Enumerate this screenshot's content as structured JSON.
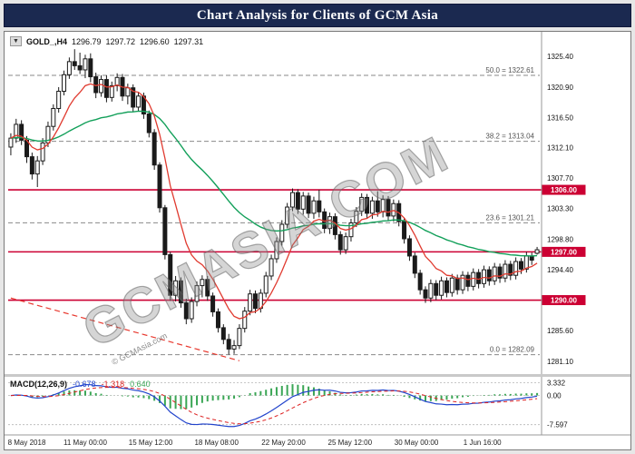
{
  "header": {
    "title": "Chart Analysis for Clients of GCM Asia",
    "bg_color": "#1b2950"
  },
  "symbol_bar": {
    "dropdown_icon": "▼",
    "symbol": "GOLD_,H4",
    "open": "1296.79",
    "high": "1297.72",
    "low": "1296.60",
    "close": "1297.31"
  },
  "watermark": {
    "main": "GCMASIA.COM",
    "small": "© GCMAsia.com"
  },
  "chart_data": {
    "type": "candlestick",
    "title": "GOLD_ H4 with MACD(12,26,9)",
    "price_range": {
      "top": 1328.4,
      "bottom": 1279.4
    },
    "price_axis_ticks": [
      "1325.40",
      "1320.90",
      "1316.50",
      "1312.10",
      "1307.70",
      "1303.30",
      "1298.80",
      "1294.40",
      "1290.00",
      "1285.60",
      "1281.10"
    ],
    "colors": {
      "sr": "#cc0033",
      "candle_up": "#ffffff",
      "candle_down": "#1a1a1a",
      "wick": "#1a1a1a"
    },
    "support_resistance": [
      {
        "price": 1306.0,
        "label": "1306.00"
      },
      {
        "price": 1297.0,
        "label": "1297.00"
      },
      {
        "price": 1290.0,
        "label": "1290.00"
      }
    ],
    "fibonacci": [
      {
        "label": "50.0 = 1322.61",
        "price": 1322.61
      },
      {
        "label": "38.2 = 1313.04",
        "price": 1313.04
      },
      {
        "label": "23.6 = 1301.21",
        "price": 1301.21
      },
      {
        "label": "0.0 = 1282.09",
        "price": 1282.09
      }
    ],
    "overlays": {
      "ma_fast": {
        "type": "ema",
        "period": 9,
        "color": "#e03a2f"
      },
      "ma_slow": {
        "type": "ema",
        "period": 45,
        "color": "#13a05a"
      },
      "trendline": {
        "from": [
          0,
          1290.3
        ],
        "to": [
          43,
          1281.2
        ],
        "color": "#e8392f"
      }
    },
    "candles": [
      [
        1312.2,
        1314.2,
        1311.0,
        1313.5
      ],
      [
        1313.5,
        1316.3,
        1312.8,
        1315.5
      ],
      [
        1315.5,
        1316.1,
        1312.5,
        1313.2
      ],
      [
        1313.2,
        1313.8,
        1309.9,
        1310.8
      ],
      [
        1310.8,
        1311.4,
        1307.5,
        1308.3
      ],
      [
        1308.3,
        1310.9,
        1306.4,
        1310.2
      ],
      [
        1310.2,
        1313.5,
        1309.6,
        1312.8
      ],
      [
        1312.8,
        1315.9,
        1312.2,
        1315.2
      ],
      [
        1315.2,
        1318.4,
        1314.6,
        1317.8
      ],
      [
        1317.8,
        1320.9,
        1317.2,
        1320.3
      ],
      [
        1320.3,
        1323.3,
        1319.7,
        1322.7
      ],
      [
        1322.7,
        1325.2,
        1322.1,
        1324.6
      ],
      [
        1324.6,
        1326.4,
        1323.4,
        1324.0
      ],
      [
        1324.0,
        1325.9,
        1322.8,
        1323.4
      ],
      [
        1323.4,
        1325.6,
        1322.2,
        1325.0
      ],
      [
        1325.0,
        1325.8,
        1321.6,
        1322.4
      ],
      [
        1322.4,
        1323.0,
        1319.3,
        1320.1
      ],
      [
        1320.1,
        1322.6,
        1319.5,
        1322.0
      ],
      [
        1322.0,
        1322.6,
        1318.7,
        1319.4
      ],
      [
        1319.4,
        1321.7,
        1318.8,
        1321.1
      ],
      [
        1321.1,
        1322.9,
        1320.3,
        1322.3
      ],
      [
        1322.3,
        1322.8,
        1318.9,
        1319.6
      ],
      [
        1319.6,
        1321.4,
        1318.4,
        1320.8
      ],
      [
        1320.8,
        1321.3,
        1317.3,
        1318.0
      ],
      [
        1318.0,
        1320.2,
        1317.4,
        1319.6
      ],
      [
        1319.6,
        1320.1,
        1316.3,
        1317.0
      ],
      [
        1317.0,
        1317.5,
        1313.6,
        1314.3
      ],
      [
        1314.3,
        1314.8,
        1308.9,
        1309.6
      ],
      [
        1309.6,
        1310.0,
        1302.7,
        1303.4
      ],
      [
        1303.4,
        1303.8,
        1295.9,
        1296.6
      ],
      [
        1296.6,
        1297.0,
        1289.9,
        1290.7
      ],
      [
        1290.7,
        1293.5,
        1289.8,
        1292.8
      ],
      [
        1292.8,
        1293.3,
        1288.9,
        1289.6
      ],
      [
        1289.6,
        1290.2,
        1286.5,
        1287.3
      ],
      [
        1287.3,
        1290.4,
        1286.7,
        1289.8
      ],
      [
        1289.8,
        1292.7,
        1289.1,
        1292.1
      ],
      [
        1292.1,
        1293.6,
        1290.4,
        1293.0
      ],
      [
        1293.0,
        1293.5,
        1289.9,
        1290.6
      ],
      [
        1290.6,
        1291.1,
        1287.6,
        1288.3
      ],
      [
        1288.3,
        1288.8,
        1285.3,
        1286.0
      ],
      [
        1286.0,
        1286.5,
        1283.6,
        1284.3
      ],
      [
        1284.3,
        1285.1,
        1282.1,
        1282.9
      ],
      [
        1282.9,
        1284.2,
        1282.2,
        1283.4
      ],
      [
        1283.4,
        1286.5,
        1282.9,
        1285.9
      ],
      [
        1285.9,
        1289.0,
        1285.3,
        1288.4
      ],
      [
        1288.4,
        1291.5,
        1287.8,
        1290.9
      ],
      [
        1290.9,
        1291.4,
        1288.1,
        1288.8
      ],
      [
        1288.8,
        1291.6,
        1288.2,
        1291.0
      ],
      [
        1291.0,
        1294.1,
        1290.4,
        1293.5
      ],
      [
        1293.5,
        1296.6,
        1292.9,
        1296.0
      ],
      [
        1296.0,
        1299.1,
        1295.4,
        1298.5
      ],
      [
        1298.5,
        1301.6,
        1297.9,
        1301.0
      ],
      [
        1301.0,
        1304.1,
        1300.4,
        1303.5
      ],
      [
        1303.5,
        1306.2,
        1302.9,
        1305.6
      ],
      [
        1305.6,
        1306.1,
        1302.5,
        1303.2
      ],
      [
        1303.2,
        1305.7,
        1302.4,
        1305.1
      ],
      [
        1305.1,
        1305.6,
        1301.9,
        1302.6
      ],
      [
        1302.6,
        1305.0,
        1301.8,
        1304.4
      ],
      [
        1304.4,
        1306.0,
        1302.0,
        1302.8
      ],
      [
        1302.8,
        1303.3,
        1299.7,
        1300.4
      ],
      [
        1300.4,
        1302.7,
        1299.6,
        1302.1
      ],
      [
        1302.1,
        1302.6,
        1298.8,
        1299.5
      ],
      [
        1299.5,
        1300.0,
        1296.6,
        1297.3
      ],
      [
        1297.3,
        1299.8,
        1296.7,
        1299.2
      ],
      [
        1299.2,
        1301.8,
        1298.5,
        1301.2
      ],
      [
        1301.2,
        1303.5,
        1300.6,
        1302.9
      ],
      [
        1302.9,
        1305.5,
        1302.2,
        1304.9
      ],
      [
        1304.9,
        1305.4,
        1301.9,
        1302.6
      ],
      [
        1302.6,
        1305.0,
        1301.8,
        1304.4
      ],
      [
        1304.4,
        1305.8,
        1302.1,
        1302.8
      ],
      [
        1302.8,
        1305.2,
        1302.0,
        1304.6
      ],
      [
        1304.6,
        1305.1,
        1301.5,
        1302.2
      ],
      [
        1302.2,
        1304.6,
        1301.4,
        1304.0
      ],
      [
        1304.0,
        1304.5,
        1300.7,
        1301.4
      ],
      [
        1301.4,
        1301.9,
        1298.2,
        1298.9
      ],
      [
        1298.9,
        1299.4,
        1295.7,
        1296.4
      ],
      [
        1296.4,
        1296.9,
        1293.2,
        1293.9
      ],
      [
        1293.9,
        1294.4,
        1290.8,
        1291.5
      ],
      [
        1291.5,
        1292.0,
        1289.6,
        1290.3
      ],
      [
        1290.3,
        1293.0,
        1289.7,
        1292.4
      ],
      [
        1292.4,
        1292.9,
        1290.0,
        1290.7
      ],
      [
        1290.7,
        1293.4,
        1290.1,
        1292.8
      ],
      [
        1292.8,
        1293.3,
        1290.4,
        1291.1
      ],
      [
        1291.1,
        1293.8,
        1290.5,
        1293.2
      ],
      [
        1293.2,
        1293.7,
        1290.8,
        1291.5
      ],
      [
        1291.5,
        1294.2,
        1290.9,
        1293.6
      ],
      [
        1293.6,
        1294.1,
        1291.3,
        1292.0
      ],
      [
        1292.0,
        1294.6,
        1291.4,
        1294.0
      ],
      [
        1294.0,
        1294.5,
        1291.7,
        1292.4
      ],
      [
        1292.4,
        1295.0,
        1291.8,
        1294.4
      ],
      [
        1294.4,
        1294.9,
        1292.1,
        1292.8
      ],
      [
        1292.8,
        1295.4,
        1292.2,
        1294.8
      ],
      [
        1294.8,
        1295.3,
        1292.5,
        1293.2
      ],
      [
        1293.2,
        1295.8,
        1292.6,
        1295.2
      ],
      [
        1295.2,
        1295.7,
        1292.9,
        1293.6
      ],
      [
        1293.6,
        1296.2,
        1293.0,
        1295.6
      ],
      [
        1295.6,
        1296.1,
        1293.8,
        1294.5
      ],
      [
        1294.5,
        1297.0,
        1294.0,
        1296.4
      ],
      [
        1296.4,
        1296.9,
        1295.1,
        1295.8
      ],
      [
        1296.79,
        1297.72,
        1296.6,
        1297.31
      ]
    ],
    "time_axis": [
      {
        "label": "8 May 2018",
        "pos": 0.035
      },
      {
        "label": "11 May 00:00",
        "pos": 0.145
      },
      {
        "label": "15 May 12:00",
        "pos": 0.268
      },
      {
        "label": "18 May 08:00",
        "pos": 0.392
      },
      {
        "label": "22 May 20:00",
        "pos": 0.518
      },
      {
        "label": "25 May 12:00",
        "pos": 0.643
      },
      {
        "label": "30 May 00:00",
        "pos": 0.768
      },
      {
        "label": "1 Jun 16:00",
        "pos": 0.892
      }
    ],
    "macd": {
      "label": "MACD(12,26,9)",
      "main": "-0.678",
      "signal": "-1.318",
      "hist": "0.640",
      "axis_ticks": [
        "3.332",
        "0.00",
        "-7.597"
      ],
      "range": [
        -9.8,
        4.4
      ],
      "params": {
        "fast": 12,
        "slow": 26,
        "signal_period": 9
      },
      "colors": {
        "hist": "#3aa655",
        "main": "#2244cc",
        "signal": "#dd2222"
      }
    }
  }
}
